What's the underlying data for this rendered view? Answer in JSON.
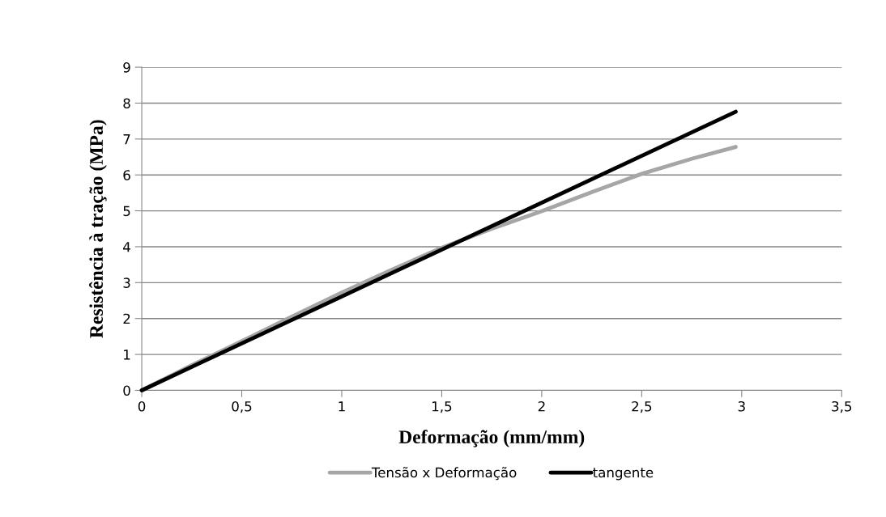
{
  "chart_data": {
    "type": "line",
    "xlabel": "Deformação (mm/mm)",
    "ylabel": "Resistência à tração (MPa)",
    "xlim": [
      0,
      3.5
    ],
    "xticks": [
      0,
      {
        "value": 0.5,
        "label": "0,5"
      },
      1,
      {
        "value": 1.5,
        "label": "1,5"
      },
      2,
      {
        "value": 2.5,
        "label": "2,5"
      },
      3,
      {
        "value": 3.5,
        "label": "3,5"
      }
    ],
    "ylim": [
      0,
      9
    ],
    "yticks": [
      0,
      1,
      2,
      3,
      4,
      5,
      6,
      7,
      8,
      9
    ],
    "grid": "y",
    "legend": "bottom",
    "marker": "none",
    "line_style": "solid",
    "series": [
      {
        "name": "Tensão x Deformação",
        "color": "#a6a6a6",
        "x": [
          0,
          0.25,
          0.5,
          0.75,
          1,
          1.25,
          1.5,
          1.75,
          2,
          2.25,
          2.5,
          2.75,
          2.97
        ],
        "values": [
          0,
          0.7,
          1.37,
          2.05,
          2.72,
          3.36,
          3.97,
          4.5,
          4.99,
          5.52,
          6.03,
          6.45,
          6.78
        ]
      },
      {
        "name": "tangente",
        "color": "#000000",
        "x": [
          0,
          2.97
        ],
        "values": [
          0,
          7.76
        ]
      }
    ]
  }
}
